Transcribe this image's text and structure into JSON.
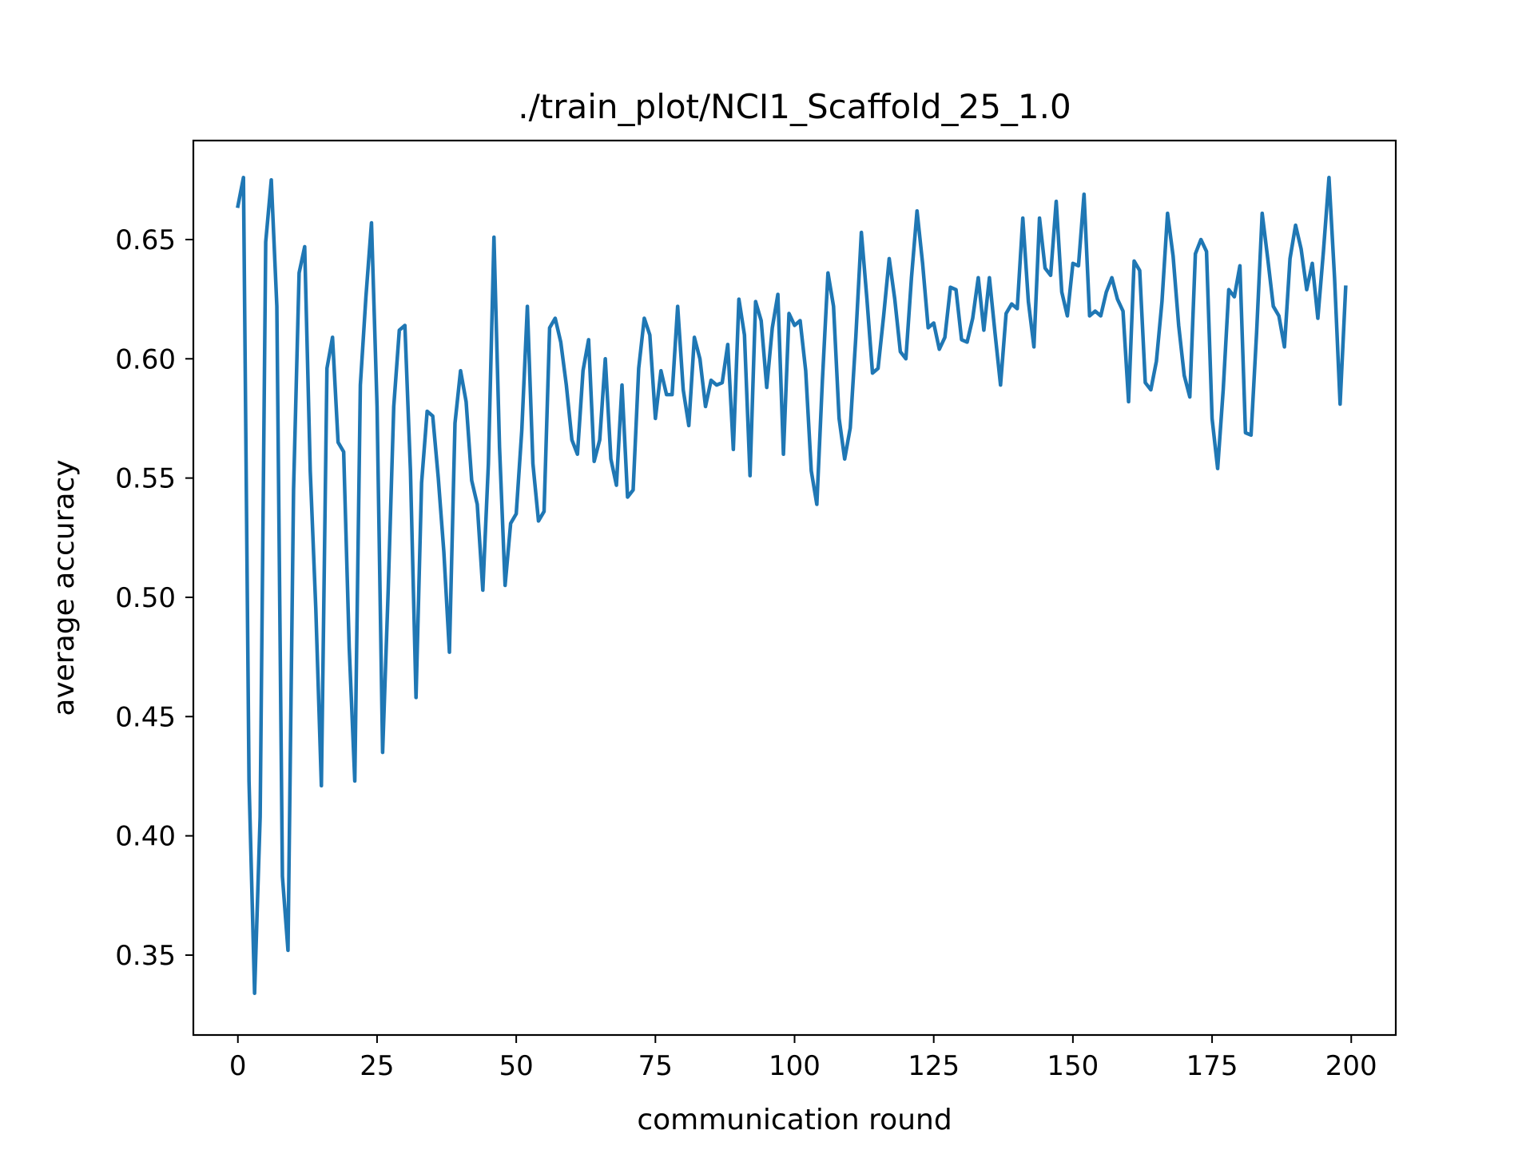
{
  "chart_data": {
    "type": "line",
    "title": "./train_plot/NCI1_Scaffold_25_1.0",
    "xlabel": "communication round",
    "ylabel": "average accuracy",
    "xlim": [
      -8,
      208
    ],
    "ylim": [
      0.3165,
      0.6915
    ],
    "xticks": [
      0,
      25,
      50,
      75,
      100,
      125,
      150,
      175,
      200
    ],
    "xtick_labels": [
      "0",
      "25",
      "50",
      "75",
      "100",
      "125",
      "150",
      "175",
      "200"
    ],
    "yticks": [
      0.35,
      0.4,
      0.45,
      0.5,
      0.55,
      0.6,
      0.65
    ],
    "ytick_labels": [
      "0.35",
      "0.40",
      "0.45",
      "0.50",
      "0.55",
      "0.60",
      "0.65"
    ],
    "grid": false,
    "line_color": "#1f77b4",
    "series": [
      {
        "x": [
          0,
          1,
          2,
          3,
          4,
          5,
          6,
          7,
          8,
          9,
          10,
          11,
          12,
          13,
          14,
          15,
          16,
          17,
          18,
          19,
          20,
          21,
          22,
          23,
          24,
          25,
          26,
          27,
          28,
          29,
          30,
          31,
          32,
          33,
          34,
          35,
          36,
          37,
          38,
          39,
          40,
          41,
          42,
          43,
          44,
          45,
          46,
          47,
          48,
          49,
          50,
          51,
          52,
          53,
          54,
          55,
          56,
          57,
          58,
          59,
          60,
          61,
          62,
          63,
          64,
          65,
          66,
          67,
          68,
          69,
          70,
          71,
          72,
          73,
          74,
          75,
          76,
          77,
          78,
          79,
          80,
          81,
          82,
          83,
          84,
          85,
          86,
          87,
          88,
          89,
          90,
          91,
          92,
          93,
          94,
          95,
          96,
          97,
          98,
          99,
          100,
          101,
          102,
          103,
          104,
          105,
          106,
          107,
          108,
          109,
          110,
          111,
          112,
          113,
          114,
          115,
          116,
          117,
          118,
          119,
          120,
          121,
          122,
          123,
          124,
          125,
          126,
          127,
          128,
          129,
          130,
          131,
          132,
          133,
          134,
          135,
          136,
          137,
          138,
          139,
          140,
          141,
          142,
          143,
          144,
          145,
          146,
          147,
          148,
          149,
          150,
          151,
          152,
          153,
          154,
          155,
          156,
          157,
          158,
          159,
          160,
          161,
          162,
          163,
          164,
          165,
          166,
          167,
          168,
          169,
          170,
          171,
          172,
          173,
          174,
          175,
          176,
          177,
          178,
          179,
          180,
          181,
          182,
          183,
          184,
          185,
          186,
          187,
          188,
          189,
          190,
          191,
          192,
          193,
          194,
          195,
          196,
          197,
          198,
          199
        ],
        "values": [
          0.664,
          0.676,
          0.423,
          0.334,
          0.408,
          0.649,
          0.675,
          0.622,
          0.383,
          0.352,
          0.545,
          0.636,
          0.647,
          0.553,
          0.495,
          0.421,
          0.596,
          0.609,
          0.565,
          0.561,
          0.479,
          0.423,
          0.589,
          0.626,
          0.657,
          0.58,
          0.435,
          0.503,
          0.58,
          0.612,
          0.614,
          0.553,
          0.458,
          0.548,
          0.578,
          0.576,
          0.55,
          0.519,
          0.477,
          0.573,
          0.595,
          0.582,
          0.549,
          0.539,
          0.503,
          0.556,
          0.651,
          0.563,
          0.505,
          0.531,
          0.535,
          0.57,
          0.622,
          0.556,
          0.532,
          0.536,
          0.613,
          0.617,
          0.607,
          0.589,
          0.566,
          0.56,
          0.595,
          0.608,
          0.557,
          0.566,
          0.6,
          0.558,
          0.547,
          0.589,
          0.542,
          0.545,
          0.596,
          0.617,
          0.61,
          0.575,
          0.595,
          0.585,
          0.585,
          0.622,
          0.587,
          0.572,
          0.609,
          0.6,
          0.58,
          0.591,
          0.589,
          0.59,
          0.606,
          0.562,
          0.625,
          0.61,
          0.551,
          0.624,
          0.616,
          0.588,
          0.613,
          0.627,
          0.56,
          0.619,
          0.614,
          0.616,
          0.595,
          0.553,
          0.539,
          0.591,
          0.636,
          0.622,
          0.575,
          0.558,
          0.571,
          0.609,
          0.653,
          0.625,
          0.594,
          0.596,
          0.618,
          0.642,
          0.625,
          0.603,
          0.6,
          0.634,
          0.662,
          0.64,
          0.613,
          0.615,
          0.604,
          0.609,
          0.63,
          0.629,
          0.608,
          0.607,
          0.617,
          0.634,
          0.612,
          0.634,
          0.611,
          0.589,
          0.619,
          0.623,
          0.621,
          0.659,
          0.624,
          0.605,
          0.659,
          0.638,
          0.635,
          0.666,
          0.628,
          0.618,
          0.64,
          0.639,
          0.669,
          0.618,
          0.62,
          0.618,
          0.628,
          0.634,
          0.625,
          0.62,
          0.582,
          0.641,
          0.637,
          0.59,
          0.587,
          0.599,
          0.624,
          0.661,
          0.643,
          0.614,
          0.593,
          0.584,
          0.644,
          0.65,
          0.645,
          0.575,
          0.554,
          0.587,
          0.629,
          0.626,
          0.639,
          0.569,
          0.568,
          0.611,
          0.661,
          0.642,
          0.622,
          0.618,
          0.605,
          0.642,
          0.656,
          0.646,
          0.629,
          0.64,
          0.617,
          0.645,
          0.676,
          0.634,
          0.581,
          0.63
        ]
      }
    ]
  }
}
